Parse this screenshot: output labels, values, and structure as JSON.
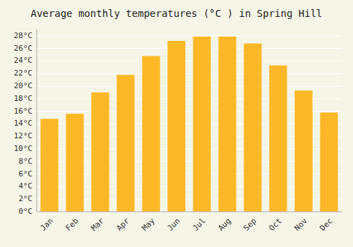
{
  "chart_data": {
    "type": "bar",
    "title": "Average monthly temperatures (°C ) in Spring Hill",
    "categories": [
      "Jan",
      "Feb",
      "Mar",
      "Apr",
      "May",
      "Jun",
      "Jul",
      "Aug",
      "Sep",
      "Oct",
      "Nov",
      "Dec"
    ],
    "values": [
      14.8,
      15.6,
      19.0,
      21.8,
      24.8,
      27.2,
      27.9,
      27.9,
      26.8,
      23.3,
      19.3,
      15.8
    ],
    "color": "#FDB827",
    "ylim": [
      0,
      29
    ],
    "yticks": [
      {
        "value": 0,
        "label": "0°C"
      },
      {
        "value": 2,
        "label": "2°C"
      },
      {
        "value": 4,
        "label": "4°C"
      },
      {
        "value": 6,
        "label": "6°C"
      },
      {
        "value": 8,
        "label": "8°C"
      },
      {
        "value": 10,
        "label": "10°C"
      },
      {
        "value": 12,
        "label": "12°C"
      },
      {
        "value": 14,
        "label": "14°C"
      },
      {
        "value": 16,
        "label": "16°C"
      },
      {
        "value": 18,
        "label": "18°C"
      },
      {
        "value": 20,
        "label": "20°C"
      },
      {
        "value": 22,
        "label": "22°C"
      },
      {
        "value": 24,
        "label": "24°C"
      },
      {
        "value": 26,
        "label": "26°C"
      },
      {
        "value": 28,
        "label": "28°C"
      }
    ],
    "grid": true
  }
}
